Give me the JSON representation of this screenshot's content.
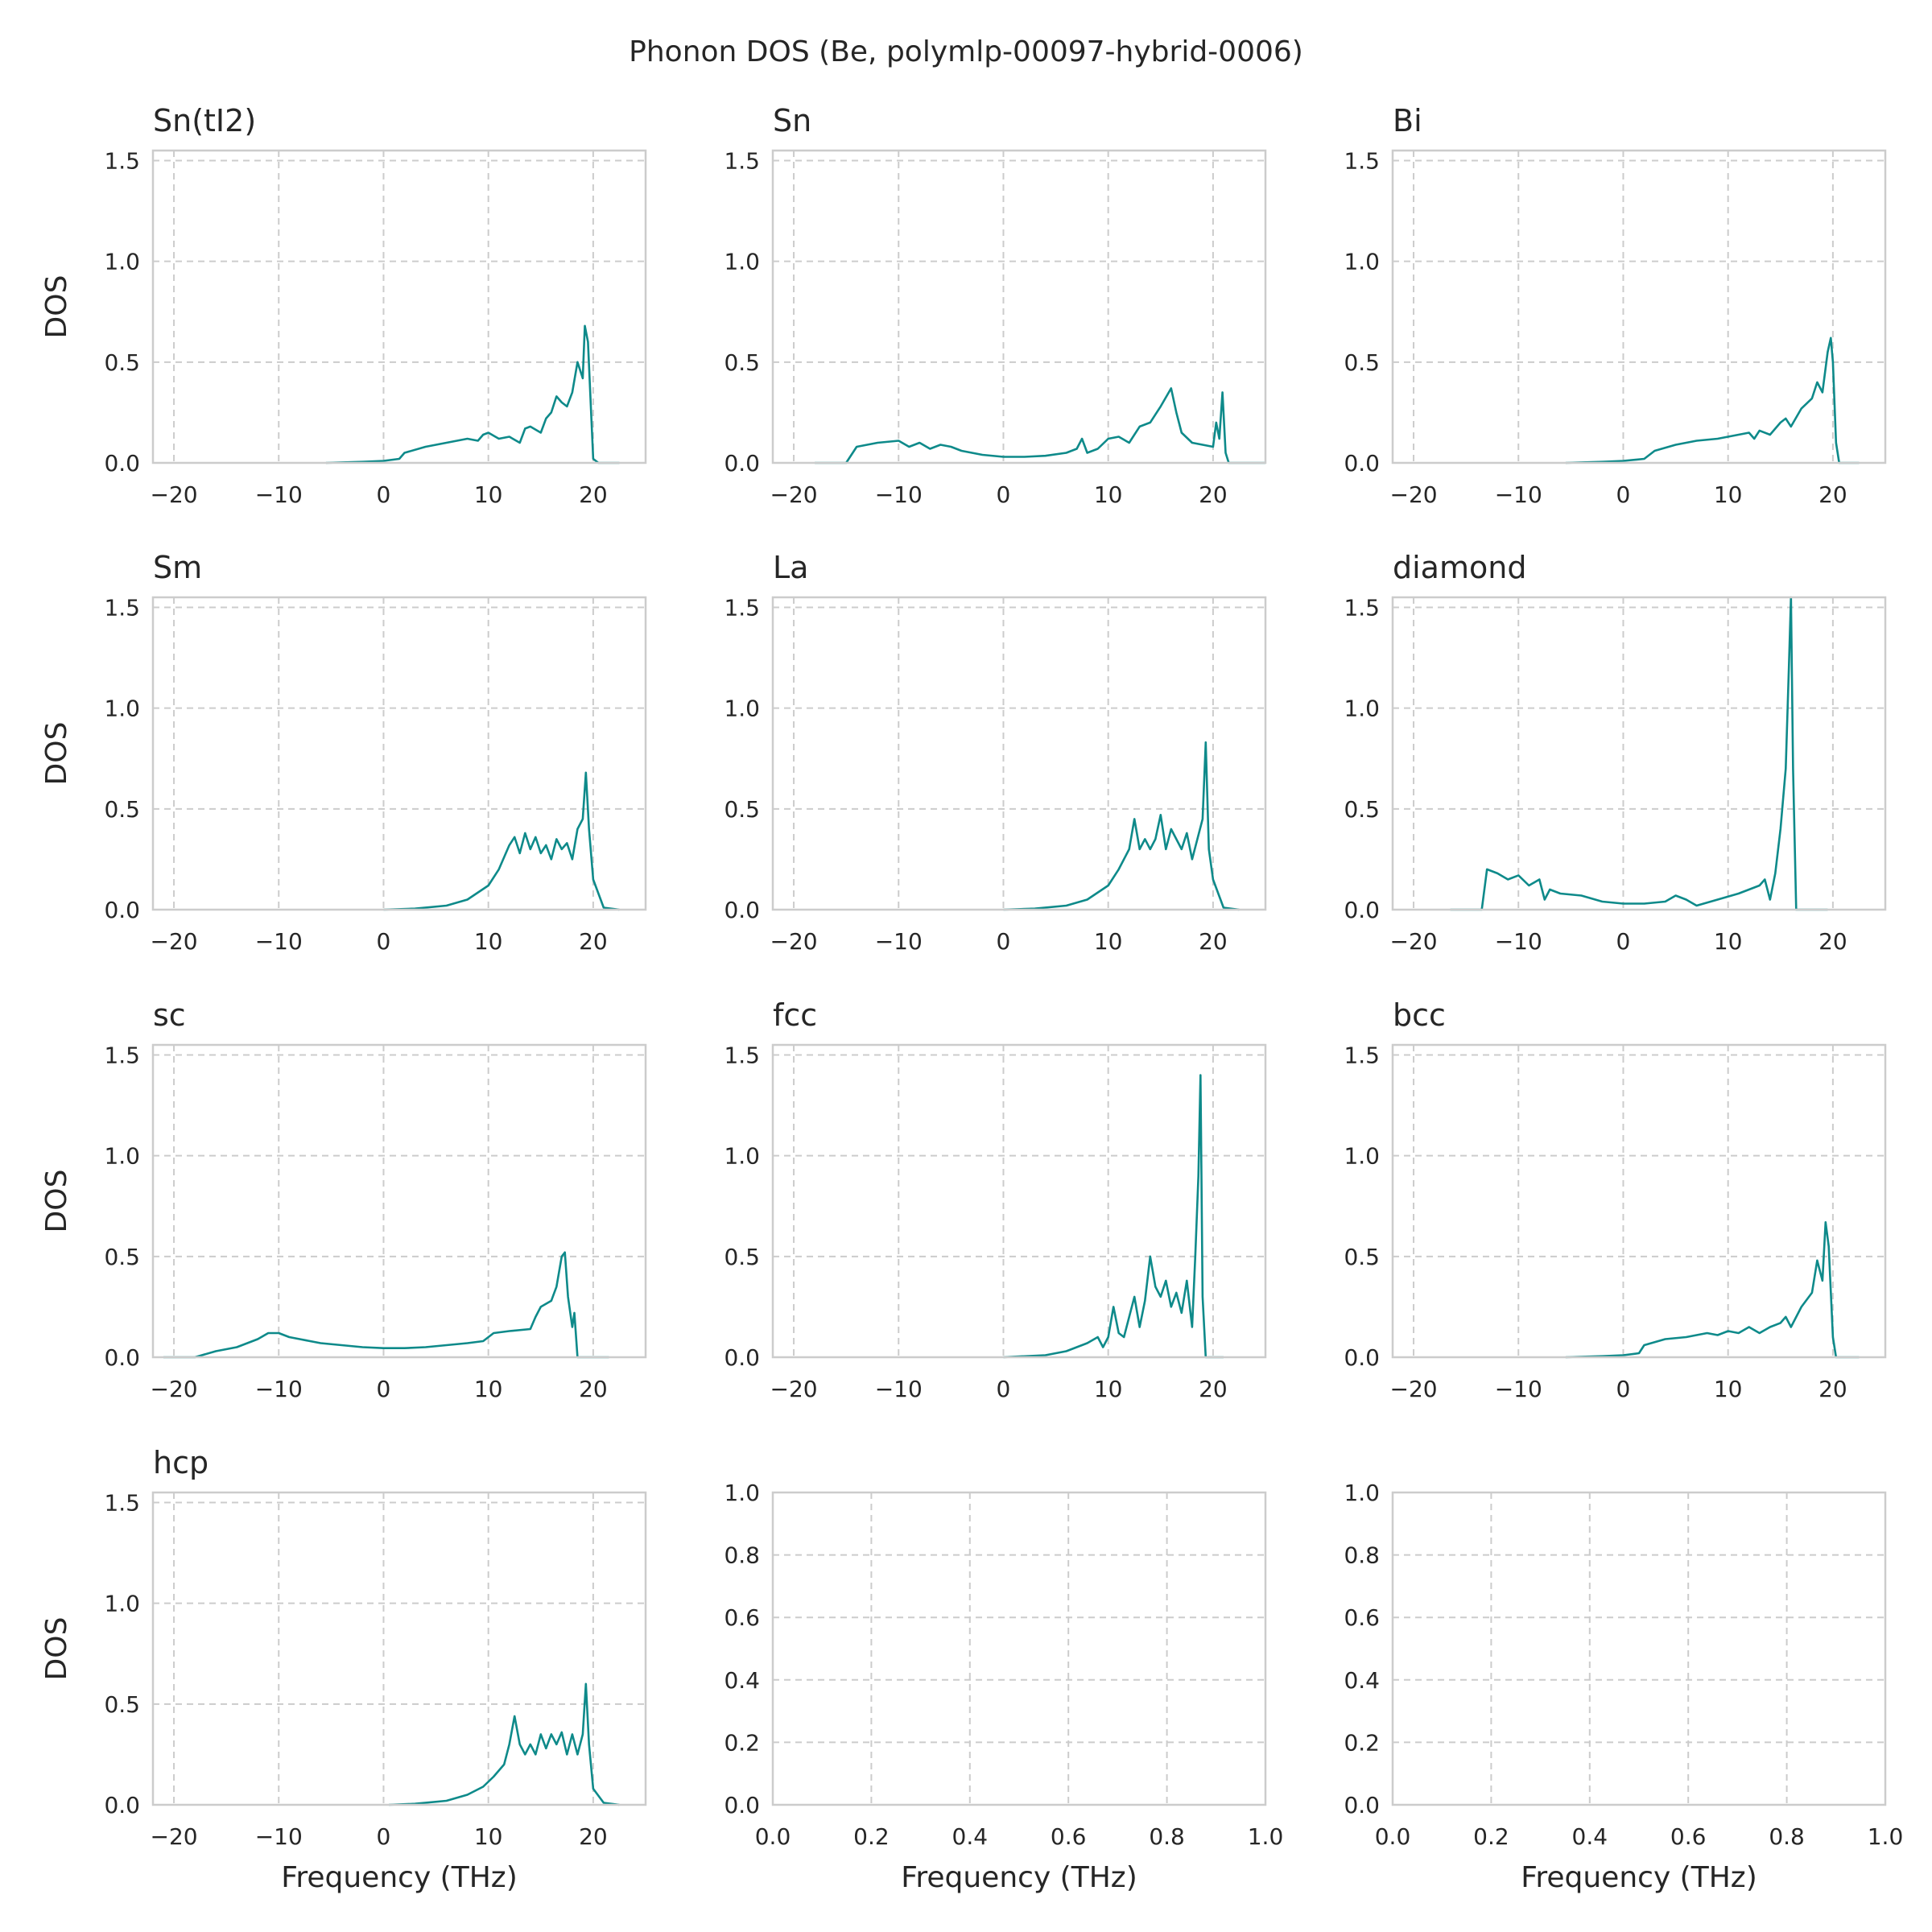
{
  "figure": {
    "title": "Phonon DOS (Be, polymlp-00097-hybrid-0006)",
    "line_color": "#0e8a8a",
    "grid_color": "#cccccc",
    "frame_color": "#cccccc",
    "text_color": "#262626",
    "x_label": "Frequency (THz)",
    "y_label": "DOS"
  },
  "chart_data": [
    {
      "type": "line",
      "title": "Sn(tI2)",
      "xlim": [
        -22,
        25
      ],
      "ylim": [
        0,
        1.55
      ],
      "xticks": [
        "−20",
        "−10",
        "0",
        "10",
        "20"
      ],
      "xtick_values": [
        -20,
        -10,
        0,
        10,
        20
      ],
      "yticks": [
        "0.0",
        "0.5",
        "1.0",
        "1.5"
      ],
      "ytick_values": [
        0,
        0.5,
        1.0,
        1.5
      ],
      "xlabel": "",
      "ylabel": "DOS",
      "grid": true,
      "x": [
        -5.5,
        -2,
        0,
        1.5,
        2,
        4,
        6,
        8,
        9,
        9.5,
        10,
        11,
        12,
        13,
        13.5,
        14,
        15,
        15.5,
        16,
        16.5,
        17,
        17.5,
        18,
        18.5,
        19,
        19.2,
        19.5,
        19.8,
        20,
        20.5,
        22.5
      ],
      "y": [
        0,
        0.005,
        0.01,
        0.02,
        0.05,
        0.08,
        0.1,
        0.12,
        0.11,
        0.14,
        0.15,
        0.12,
        0.13,
        0.1,
        0.17,
        0.18,
        0.15,
        0.22,
        0.25,
        0.33,
        0.3,
        0.28,
        0.35,
        0.5,
        0.42,
        0.68,
        0.6,
        0.25,
        0.02,
        0.0,
        0.0
      ]
    },
    {
      "type": "line",
      "title": "Sn",
      "xlim": [
        -22,
        25
      ],
      "ylim": [
        0,
        1.55
      ],
      "xticks": [
        "−20",
        "−10",
        "0",
        "10",
        "20"
      ],
      "xtick_values": [
        -20,
        -10,
        0,
        10,
        20
      ],
      "yticks": [
        "0.0",
        "0.5",
        "1.0",
        "1.5"
      ],
      "ytick_values": [
        0,
        0.5,
        1.0,
        1.5
      ],
      "xlabel": "",
      "ylabel": "",
      "grid": true,
      "x": [
        -18,
        -15,
        -14,
        -12,
        -10,
        -9,
        -8,
        -7,
        -6,
        -5,
        -4,
        -2,
        0,
        2,
        4,
        6,
        7,
        7.5,
        8,
        9,
        10,
        11,
        12,
        13,
        14,
        15,
        16,
        16.5,
        17,
        18,
        20,
        20.3,
        20.6,
        20.9,
        21.2,
        21.5,
        25
      ],
      "y": [
        0,
        0,
        0.08,
        0.1,
        0.11,
        0.08,
        0.1,
        0.07,
        0.09,
        0.08,
        0.06,
        0.04,
        0.03,
        0.03,
        0.035,
        0.05,
        0.07,
        0.12,
        0.05,
        0.07,
        0.12,
        0.13,
        0.1,
        0.18,
        0.2,
        0.28,
        0.37,
        0.25,
        0.15,
        0.1,
        0.08,
        0.2,
        0.12,
        0.35,
        0.05,
        0.0,
        0.0
      ]
    },
    {
      "type": "line",
      "title": "Bi",
      "xlim": [
        -22,
        25
      ],
      "ylim": [
        0,
        1.55
      ],
      "xticks": [
        "−20",
        "−10",
        "0",
        "10",
        "20"
      ],
      "xtick_values": [
        -20,
        -10,
        0,
        10,
        20
      ],
      "yticks": [
        "0.0",
        "0.5",
        "1.0",
        "1.5"
      ],
      "ytick_values": [
        0,
        0.5,
        1.0,
        1.5
      ],
      "xlabel": "",
      "ylabel": "",
      "grid": true,
      "x": [
        -5.5,
        -2,
        0,
        2,
        3,
        5,
        7,
        9,
        10,
        11,
        12,
        12.5,
        13,
        14,
        15,
        15.5,
        16,
        17,
        18,
        18.5,
        19,
        19.5,
        19.8,
        20,
        20.3,
        20.6,
        22.5
      ],
      "y": [
        0,
        0.005,
        0.01,
        0.02,
        0.06,
        0.09,
        0.11,
        0.12,
        0.13,
        0.14,
        0.15,
        0.12,
        0.16,
        0.14,
        0.2,
        0.22,
        0.18,
        0.27,
        0.32,
        0.4,
        0.35,
        0.55,
        0.62,
        0.5,
        0.1,
        0.0,
        0.0
      ]
    },
    {
      "type": "line",
      "title": "Sm",
      "xlim": [
        -22,
        25
      ],
      "ylim": [
        0,
        1.55
      ],
      "xticks": [
        "−20",
        "−10",
        "0",
        "10",
        "20"
      ],
      "xtick_values": [
        -20,
        -10,
        0,
        10,
        20
      ],
      "yticks": [
        "0.0",
        "0.5",
        "1.0",
        "1.5"
      ],
      "ytick_values": [
        0,
        0.5,
        1.0,
        1.5
      ],
      "xlabel": "",
      "ylabel": "DOS",
      "grid": true,
      "x": [
        0,
        3,
        6,
        8,
        10,
        11,
        12,
        12.5,
        13,
        13.5,
        14,
        14.5,
        15,
        15.5,
        16,
        16.5,
        17,
        17.5,
        18,
        18.5,
        19,
        19.3,
        19.6,
        20,
        21,
        22.5
      ],
      "y": [
        0,
        0.005,
        0.02,
        0.05,
        0.12,
        0.2,
        0.32,
        0.36,
        0.28,
        0.38,
        0.3,
        0.36,
        0.28,
        0.32,
        0.25,
        0.35,
        0.3,
        0.33,
        0.25,
        0.4,
        0.45,
        0.68,
        0.4,
        0.15,
        0.01,
        0.0
      ]
    },
    {
      "type": "line",
      "title": "La",
      "xlim": [
        -22,
        25
      ],
      "ylim": [
        0,
        1.55
      ],
      "xticks": [
        "−20",
        "−10",
        "0",
        "10",
        "20"
      ],
      "xtick_values": [
        -20,
        -10,
        0,
        10,
        20
      ],
      "yticks": [
        "0.0",
        "0.5",
        "1.0",
        "1.5"
      ],
      "ytick_values": [
        0,
        0.5,
        1.0,
        1.5
      ],
      "xlabel": "",
      "ylabel": "",
      "grid": true,
      "x": [
        0,
        3,
        6,
        8,
        10,
        11,
        12,
        12.5,
        13,
        13.5,
        14,
        14.5,
        15,
        15.5,
        16,
        16.5,
        17,
        17.5,
        18,
        18.5,
        19,
        19.3,
        19.6,
        20,
        21,
        22.5
      ],
      "y": [
        0,
        0.005,
        0.02,
        0.05,
        0.12,
        0.2,
        0.3,
        0.45,
        0.3,
        0.35,
        0.3,
        0.35,
        0.47,
        0.3,
        0.4,
        0.35,
        0.3,
        0.38,
        0.25,
        0.35,
        0.45,
        0.83,
        0.3,
        0.15,
        0.01,
        0.0
      ]
    },
    {
      "type": "line",
      "title": "diamond",
      "xlim": [
        -22,
        25
      ],
      "ylim": [
        0,
        1.55
      ],
      "xticks": [
        "−20",
        "−10",
        "0",
        "10",
        "20"
      ],
      "xtick_values": [
        -20,
        -10,
        0,
        10,
        20
      ],
      "yticks": [
        "0.0",
        "0.5",
        "1.0",
        "1.5"
      ],
      "ytick_values": [
        0,
        0.5,
        1.0,
        1.5
      ],
      "xlabel": "",
      "ylabel": "",
      "grid": true,
      "x": [
        -16.5,
        -13.5,
        -13,
        -12,
        -11,
        -10,
        -9,
        -8,
        -7.5,
        -7,
        -6,
        -4,
        -2,
        0,
        2,
        4,
        5,
        6,
        7,
        9,
        11,
        12,
        13,
        13.5,
        14,
        14.5,
        15,
        15.5,
        15.8,
        16,
        16.2,
        16.5,
        17,
        19.5
      ],
      "y": [
        0,
        0,
        0.2,
        0.18,
        0.15,
        0.17,
        0.12,
        0.15,
        0.05,
        0.1,
        0.08,
        0.07,
        0.04,
        0.03,
        0.03,
        0.04,
        0.07,
        0.05,
        0.02,
        0.05,
        0.08,
        0.1,
        0.12,
        0.15,
        0.05,
        0.18,
        0.4,
        0.7,
        1.2,
        1.55,
        0.7,
        0.0,
        0.0,
        0.0
      ]
    },
    {
      "type": "line",
      "title": "sc",
      "xlim": [
        -22,
        25
      ],
      "ylim": [
        0,
        1.55
      ],
      "xticks": [
        "−20",
        "−10",
        "0",
        "10",
        "20"
      ],
      "xtick_values": [
        -20,
        -10,
        0,
        10,
        20
      ],
      "yticks": [
        "0.0",
        "0.5",
        "1.0",
        "1.5"
      ],
      "ytick_values": [
        0,
        0.5,
        1.0,
        1.5
      ],
      "xlabel": "",
      "ylabel": "DOS",
      "grid": true,
      "x": [
        -21,
        -18,
        -16,
        -14,
        -12,
        -11,
        -10,
        -9,
        -8,
        -6,
        -4,
        -2,
        0,
        2,
        4,
        6,
        8,
        9.5,
        10.5,
        12,
        14,
        14.5,
        15,
        16,
        16.5,
        17,
        17.3,
        17.6,
        18,
        18.2,
        18.5,
        21.5
      ],
      "y": [
        0,
        0,
        0.03,
        0.05,
        0.09,
        0.12,
        0.12,
        0.1,
        0.09,
        0.07,
        0.06,
        0.05,
        0.045,
        0.045,
        0.05,
        0.06,
        0.07,
        0.08,
        0.12,
        0.13,
        0.14,
        0.2,
        0.25,
        0.28,
        0.35,
        0.5,
        0.52,
        0.3,
        0.15,
        0.22,
        0.0,
        0.0
      ]
    },
    {
      "type": "line",
      "title": "fcc",
      "xlim": [
        -22,
        25
      ],
      "ylim": [
        0,
        1.55
      ],
      "xticks": [
        "−20",
        "−10",
        "0",
        "10",
        "20"
      ],
      "xtick_values": [
        -20,
        -10,
        0,
        10,
        20
      ],
      "yticks": [
        "0.0",
        "0.5",
        "1.0",
        "1.5"
      ],
      "ytick_values": [
        0,
        0.5,
        1.0,
        1.5
      ],
      "xlabel": "",
      "ylabel": "",
      "grid": true,
      "x": [
        0,
        4,
        6,
        8,
        9,
        9.5,
        10,
        10.5,
        11,
        11.5,
        12,
        12.5,
        13,
        13.5,
        14,
        14.5,
        15,
        15.5,
        16,
        16.5,
        17,
        17.5,
        18,
        18.3,
        18.6,
        18.8,
        19,
        19.3,
        21
      ],
      "y": [
        0,
        0.01,
        0.03,
        0.07,
        0.1,
        0.05,
        0.1,
        0.25,
        0.12,
        0.1,
        0.2,
        0.3,
        0.15,
        0.28,
        0.5,
        0.35,
        0.3,
        0.38,
        0.25,
        0.32,
        0.22,
        0.38,
        0.15,
        0.5,
        0.9,
        1.4,
        0.3,
        0.0,
        0.0
      ]
    },
    {
      "type": "line",
      "title": "bcc",
      "xlim": [
        -22,
        25
      ],
      "ylim": [
        0,
        1.55
      ],
      "xticks": [
        "−20",
        "−10",
        "0",
        "10",
        "20"
      ],
      "xtick_values": [
        -20,
        -10,
        0,
        10,
        20
      ],
      "yticks": [
        "0.0",
        "0.5",
        "1.0",
        "1.5"
      ],
      "ytick_values": [
        0,
        0.5,
        1.0,
        1.5
      ],
      "xlabel": "",
      "ylabel": "",
      "grid": true,
      "x": [
        -5.5,
        -2,
        0,
        1.5,
        2,
        4,
        6,
        8,
        9,
        10,
        11,
        12,
        13,
        14,
        15,
        15.5,
        16,
        17,
        18,
        18.5,
        19,
        19.3,
        19.6,
        20,
        20.3,
        22.5
      ],
      "y": [
        0,
        0.005,
        0.01,
        0.02,
        0.06,
        0.09,
        0.1,
        0.12,
        0.11,
        0.13,
        0.12,
        0.15,
        0.12,
        0.15,
        0.17,
        0.2,
        0.15,
        0.25,
        0.32,
        0.48,
        0.38,
        0.67,
        0.55,
        0.1,
        0.0,
        0.0
      ]
    },
    {
      "type": "line",
      "title": "hcp",
      "xlim": [
        -22,
        25
      ],
      "ylim": [
        0,
        1.55
      ],
      "xticks": [
        "−20",
        "−10",
        "0",
        "10",
        "20"
      ],
      "xtick_values": [
        -20,
        -10,
        0,
        10,
        20
      ],
      "yticks": [
        "0.0",
        "0.5",
        "1.0",
        "1.5"
      ],
      "ytick_values": [
        0,
        0.5,
        1.0,
        1.5
      ],
      "xlabel": "Frequency (THz)",
      "ylabel": "DOS",
      "grid": true,
      "x": [
        0.5,
        3,
        6,
        8,
        9.5,
        10.5,
        11.5,
        12,
        12.5,
        13,
        13.5,
        14,
        14.5,
        15,
        15.5,
        16,
        16.5,
        17,
        17.5,
        18,
        18.5,
        19,
        19.3,
        19.6,
        20,
        21,
        22.5
      ],
      "y": [
        0,
        0.005,
        0.02,
        0.05,
        0.09,
        0.14,
        0.2,
        0.3,
        0.44,
        0.3,
        0.25,
        0.3,
        0.25,
        0.35,
        0.28,
        0.35,
        0.3,
        0.36,
        0.25,
        0.35,
        0.25,
        0.35,
        0.6,
        0.3,
        0.08,
        0.01,
        0.0
      ]
    },
    {
      "type": "line",
      "title": "",
      "xlim": [
        0,
        1
      ],
      "ylim": [
        0,
        1
      ],
      "xticks": [
        "0.0",
        "0.2",
        "0.4",
        "0.6",
        "0.8",
        "1.0"
      ],
      "xtick_values": [
        0,
        0.2,
        0.4,
        0.6,
        0.8,
        1.0
      ],
      "yticks": [
        "0.0",
        "0.2",
        "0.4",
        "0.6",
        "0.8",
        "1.0"
      ],
      "ytick_values": [
        0,
        0.2,
        0.4,
        0.6,
        0.8,
        1.0
      ],
      "xlabel": "Frequency (THz)",
      "ylabel": "",
      "grid": true,
      "x": [],
      "y": []
    },
    {
      "type": "line",
      "title": "",
      "xlim": [
        0,
        1
      ],
      "ylim": [
        0,
        1
      ],
      "xticks": [
        "0.0",
        "0.2",
        "0.4",
        "0.6",
        "0.8",
        "1.0"
      ],
      "xtick_values": [
        0,
        0.2,
        0.4,
        0.6,
        0.8,
        1.0
      ],
      "yticks": [
        "0.0",
        "0.2",
        "0.4",
        "0.6",
        "0.8",
        "1.0"
      ],
      "ytick_values": [
        0,
        0.2,
        0.4,
        0.6,
        0.8,
        1.0
      ],
      "xlabel": "Frequency (THz)",
      "ylabel": "",
      "grid": true,
      "x": [],
      "y": []
    }
  ]
}
